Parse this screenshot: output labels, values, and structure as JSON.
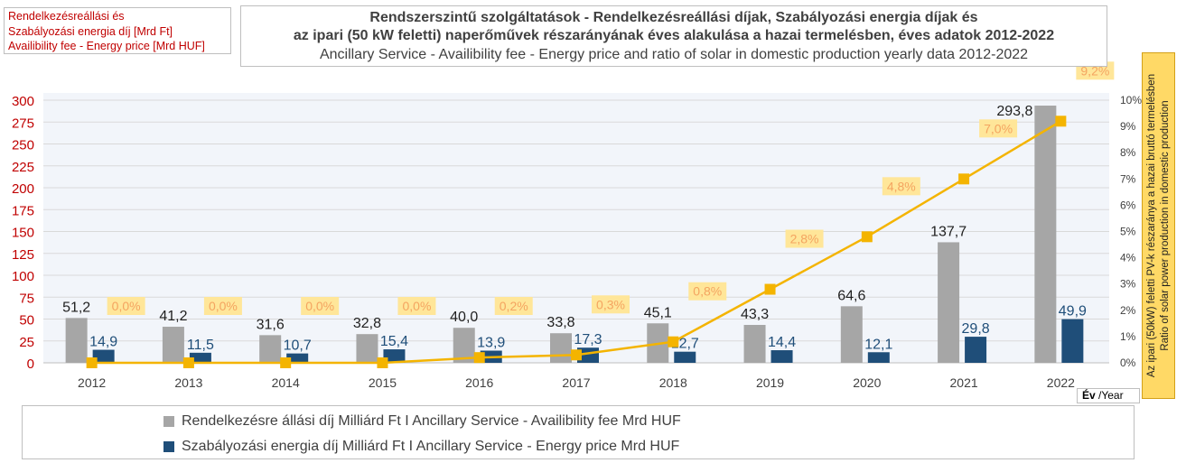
{
  "left_title": {
    "lines": [
      "Rendelkezésreállási és",
      "Szabályozási energia díj [Mrd Ft]",
      "Availibility fee - Energy price [Mrd HUF]"
    ]
  },
  "main_title": {
    "line1": "Rendszerszintű szolgáltatások - Rendelkezésreállási díjak, Szabályozási energia díjak és",
    "line2": "az ipari (50 kW feletti) naperőművek részarányának éves alakulása a hazai termelésben, éves adatok 2012-2022",
    "line3": "Ancillary Service - Availibility fee - Energy price and ratio of solar in domestic production yearly data 2012-2022"
  },
  "right_axis_title": {
    "line1": "Az ipari (50kW) feletti PV-k részaránya a hazai bruttó termelésben",
    "line2": "Ratio of solar power production in domestic production"
  },
  "x_axis_label": {
    "bold": "Év",
    "rest": " /Year"
  },
  "legend": {
    "items": [
      {
        "label": "Rendelkezésre állási díj Milliárd Ft I Ancillary Service - Availibility fee  Mrd HUF",
        "color": "#a6a6a6"
      },
      {
        "label": "Szabályozási energia díj Milliárd Ft I Ancillary Service -  Energy price Mrd HUF",
        "color": "#1f4e79"
      }
    ]
  },
  "colors": {
    "availability_bar": "#a6a6a6",
    "energy_bar": "#1f4e79",
    "ratio_line": "#f4b400",
    "ratio_label_bg": "#ffe699",
    "ratio_label_text": "#f4a460",
    "left_axis_text": "#c00000",
    "plot_bg": "#f2f5fa"
  },
  "chart_data": {
    "type": "bar",
    "categories": [
      "2012",
      "2013",
      "2014",
      "2015",
      "2016",
      "2017",
      "2018",
      "2019",
      "2020",
      "2021",
      "2022"
    ],
    "y_left": {
      "min": 0,
      "max": 300,
      "ticks": [
        0,
        25,
        50,
        75,
        100,
        125,
        150,
        175,
        200,
        225,
        250,
        275,
        300
      ]
    },
    "y_right": {
      "min": 0,
      "max": 10,
      "ticks": [
        0,
        1,
        2,
        3,
        4,
        5,
        6,
        7,
        8,
        9,
        10
      ],
      "tick_labels": [
        "0%",
        "1%",
        "2%",
        "3%",
        "4%",
        "5%",
        "6%",
        "7%",
        "8%",
        "9%",
        "10%"
      ]
    },
    "series": [
      {
        "name": "Rendelkezésre állási díj Milliárd Ft I Ancillary Service - Availibility fee  Mrd HUF",
        "type": "bar",
        "axis": "left",
        "values": [
          51.2,
          41.2,
          31.6,
          32.8,
          40.0,
          33.8,
          45.1,
          43.3,
          64.6,
          137.7,
          293.8
        ],
        "labels": [
          "51,2",
          "41,2",
          "31,6",
          "32,8",
          "40,0",
          "33,8",
          "45,1",
          "43,3",
          "64,6",
          "137,7",
          "293,8"
        ]
      },
      {
        "name": "Szabályozási energia díj Milliárd Ft I Ancillary Service -  Energy price Mrd HUF",
        "type": "bar",
        "axis": "right-bar",
        "values": [
          14.9,
          11.5,
          10.7,
          15.4,
          13.9,
          17.3,
          12.7,
          14.4,
          12.1,
          29.8,
          49.9
        ],
        "labels": [
          "14,9",
          "11,5",
          "10,7",
          "15,4",
          "13,9",
          "17,3",
          "12,7",
          "14,4",
          "12,1",
          "29,8",
          "49,9"
        ]
      },
      {
        "type": "line",
        "axis": "right",
        "values": [
          0.0,
          0.0,
          0.0,
          0.0,
          0.2,
          0.3,
          0.8,
          2.8,
          4.8,
          7.0,
          9.2
        ],
        "labels": [
          "0,0%",
          "0,0%",
          "0,0%",
          "0,0%",
          "0,2%",
          "0,3%",
          "0,8%",
          "2,8%",
          "4,8%",
          "7,0%",
          "9,2%"
        ]
      }
    ]
  }
}
